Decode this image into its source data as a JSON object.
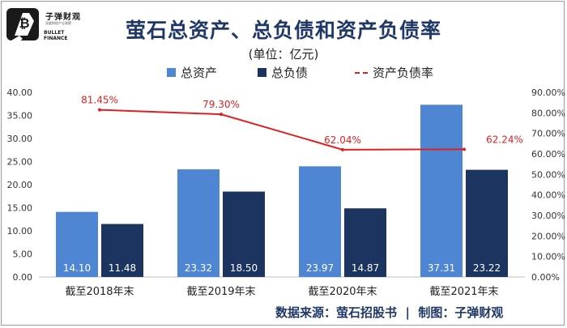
{
  "logo": {
    "name_cn": "子弹财观",
    "subtitle": "深度财经产业观察",
    "name_en": "BULLET FINANCE"
  },
  "title": "萤石总资产、总负债和资产负债率",
  "unit": "(单位：亿元)",
  "legend": {
    "total_assets": "总资产",
    "total_liabilities": "总负债",
    "debt_ratio": "资产负债率"
  },
  "colors": {
    "assets": "#4f86d4",
    "liabilities": "#1b3460",
    "ratio": "#e02020"
  },
  "footer": "数据来源：萤石招股书  |  制图：子弹财观",
  "chart_data": {
    "type": "bar",
    "categories": [
      "截至2018年末",
      "截至2019年末",
      "截至2020年末",
      "截至2021年末"
    ],
    "series": [
      {
        "name": "总资产",
        "values": [
          14.1,
          23.32,
          23.97,
          37.31
        ],
        "labels": [
          "14.10",
          "23.32",
          "23.97",
          "37.31"
        ]
      },
      {
        "name": "总负债",
        "values": [
          11.48,
          18.5,
          14.87,
          23.22
        ],
        "labels": [
          "11.48",
          "18.50",
          "14.87",
          "23.22"
        ]
      }
    ],
    "line_series": {
      "name": "资产负债率",
      "axis": "right",
      "values": [
        81.45,
        79.3,
        62.04,
        62.24
      ],
      "labels": [
        "81.45%",
        "79.30%",
        "62.04%",
        "62.24%"
      ]
    },
    "ylim": [
      0,
      40
    ],
    "y2lim": [
      0,
      90
    ],
    "y_ticks": [
      "0.00",
      "5.00",
      "10.00",
      "15.00",
      "20.00",
      "25.00",
      "30.00",
      "35.00",
      "40.00"
    ],
    "y2_ticks": [
      "0.00%",
      "10.00%",
      "20.00%",
      "30.00%",
      "40.00%",
      "50.00%",
      "60.00%",
      "70.00%",
      "80.00%",
      "90.00%"
    ],
    "grid": false,
    "legend_position": "top"
  }
}
